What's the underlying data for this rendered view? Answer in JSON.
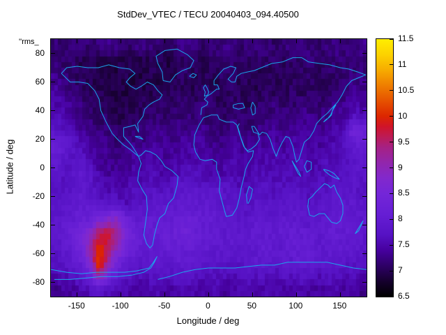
{
  "corner_label": "''rms_",
  "colors": {
    "background": "#ffffff",
    "axis": "#000000",
    "coastline": "#1aa7ec",
    "palette": [
      {
        "t": 0.0,
        "c": "#000000"
      },
      {
        "t": 0.06,
        "c": "#16002e"
      },
      {
        "t": 0.12,
        "c": "#2e0066"
      },
      {
        "t": 0.18,
        "c": "#46009e"
      },
      {
        "t": 0.24,
        "c": "#5612c4"
      },
      {
        "t": 0.32,
        "c": "#661ed4"
      },
      {
        "t": 0.4,
        "c": "#7426d8"
      },
      {
        "t": 0.46,
        "c": "#8228cc"
      },
      {
        "t": 0.52,
        "c": "#9226ac"
      },
      {
        "t": 0.58,
        "c": "#a62184"
      },
      {
        "t": 0.62,
        "c": "#bc1b56"
      },
      {
        "t": 0.66,
        "c": "#d0142a"
      },
      {
        "t": 0.7,
        "c": "#dc2600"
      },
      {
        "t": 0.76,
        "c": "#e65200"
      },
      {
        "t": 0.82,
        "c": "#ef7e00"
      },
      {
        "t": 0.88,
        "c": "#f7ac00"
      },
      {
        "t": 0.94,
        "c": "#fcd200"
      },
      {
        "t": 1.0,
        "c": "#ffee00"
      }
    ]
  },
  "chart_data": {
    "type": "heatmap",
    "title": "StdDev_VTEC / TECU 20040403_094.40500",
    "xlabel": "Longitude / deg",
    "ylabel": "Latitude / deg",
    "zlabel": "TECU",
    "grid": false,
    "legend_position": "right-colorbar",
    "axes": {
      "x": {
        "min": -180,
        "max": 180,
        "ticks": [
          -150,
          -100,
          -50,
          0,
          50,
          100,
          150
        ]
      },
      "y": {
        "min": -90,
        "max": 90,
        "ticks": [
          80,
          60,
          40,
          20,
          0,
          -20,
          -40,
          -60,
          -80
        ]
      }
    },
    "colorbar": {
      "min": 6.5,
      "max": 11.5,
      "tick_values": [
        6.5,
        7,
        7.5,
        8,
        8.5,
        9,
        9.5,
        10,
        10.5,
        11,
        11.5
      ],
      "tick_labels": [
        "6.5",
        "7",
        "7.5",
        "8",
        "8.5",
        "9",
        "9.5",
        "10",
        "10.5",
        "11",
        "11.5"
      ]
    },
    "zlim": [
      6.5,
      11.5
    ],
    "grid_deg": 10,
    "row_order": "north-to-south",
    "values": [
      [
        7.2,
        7.1,
        7.2,
        7.3,
        7.1,
        7.2,
        7.3,
        7.2,
        7.1,
        7.2,
        7.3,
        7.2,
        7.1,
        7.1,
        7.2,
        7.3,
        7.2,
        7.1,
        7.2,
        7.2,
        7.3,
        7.1,
        7.2,
        7.3,
        7.2,
        7.1,
        7.2,
        7.2,
        7.3,
        7.2,
        7.1,
        7.2,
        7.3,
        7.2,
        7.2,
        7.3
      ],
      [
        7.2,
        7.1,
        7.1,
        7.0,
        7.0,
        7.0,
        6.9,
        7.0,
        6.9,
        7.0,
        6.9,
        7.0,
        7.0,
        6.9,
        7.0,
        7.1,
        7.1,
        7.0,
        7.1,
        7.1,
        7.2,
        7.1,
        7.1,
        7.0,
        7.1,
        7.1,
        7.0,
        7.1,
        7.1,
        7.2,
        7.1,
        7.1,
        7.2,
        7.2,
        7.1,
        7.2
      ],
      [
        7.3,
        7.2,
        7.1,
        7.0,
        7.0,
        6.9,
        6.9,
        6.9,
        7.0,
        6.9,
        6.9,
        7.0,
        6.9,
        7.0,
        7.0,
        7.1,
        7.0,
        7.0,
        7.0,
        7.1,
        7.1,
        7.0,
        7.1,
        7.0,
        7.0,
        7.1,
        7.0,
        7.0,
        7.1,
        7.1,
        7.0,
        7.1,
        7.1,
        7.2,
        7.2,
        7.2
      ],
      [
        7.4,
        7.3,
        7.2,
        7.1,
        7.0,
        7.0,
        6.9,
        6.9,
        6.9,
        6.9,
        7.0,
        6.9,
        7.0,
        7.0,
        7.1,
        7.0,
        7.0,
        7.1,
        7.0,
        7.0,
        7.1,
        7.0,
        7.0,
        7.0,
        7.1,
        7.0,
        7.0,
        7.1,
        7.0,
        7.1,
        7.1,
        7.1,
        7.2,
        7.2,
        7.3,
        7.3
      ],
      [
        7.5,
        7.4,
        7.3,
        7.2,
        7.1,
        7.0,
        7.0,
        6.9,
        7.0,
        7.0,
        7.0,
        7.1,
        7.1,
        7.0,
        7.1,
        7.1,
        7.1,
        7.2,
        7.1,
        7.0,
        7.1,
        7.1,
        7.0,
        7.1,
        7.1,
        7.2,
        7.1,
        7.1,
        7.2,
        7.2,
        7.1,
        7.2,
        7.3,
        7.3,
        7.4,
        7.4
      ],
      [
        7.6,
        7.5,
        7.4,
        7.3,
        7.2,
        7.1,
        7.1,
        7.0,
        7.0,
        7.1,
        7.1,
        7.2,
        7.2,
        7.1,
        7.2,
        7.2,
        7.2,
        7.2,
        7.1,
        7.1,
        7.2,
        7.2,
        7.1,
        7.2,
        7.2,
        7.2,
        7.2,
        7.3,
        7.3,
        7.3,
        7.2,
        7.3,
        7.4,
        7.4,
        7.8,
        7.6
      ],
      [
        7.8,
        7.7,
        7.6,
        7.4,
        7.3,
        7.2,
        7.2,
        7.1,
        7.1,
        7.2,
        7.2,
        7.3,
        7.3,
        7.2,
        7.3,
        7.3,
        7.4,
        7.3,
        7.2,
        7.2,
        7.3,
        7.3,
        7.2,
        7.3,
        7.3,
        7.4,
        7.3,
        7.4,
        7.4,
        7.4,
        7.3,
        7.4,
        7.5,
        7.6,
        8.5,
        8.2
      ],
      [
        8.1,
        8.0,
        7.8,
        7.6,
        7.4,
        7.3,
        7.3,
        7.2,
        7.2,
        7.3,
        7.3,
        7.4,
        7.4,
        7.3,
        7.4,
        7.4,
        7.5,
        7.4,
        7.3,
        7.3,
        7.4,
        7.4,
        7.3,
        7.4,
        7.4,
        7.5,
        7.4,
        7.5,
        7.5,
        7.5,
        7.4,
        7.5,
        7.6,
        7.7,
        7.9,
        8.0
      ],
      [
        8.0,
        7.8,
        7.7,
        7.8,
        7.6,
        7.4,
        7.3,
        7.3,
        7.3,
        7.4,
        7.4,
        7.5,
        7.4,
        7.4,
        7.5,
        7.5,
        7.5,
        7.5,
        7.4,
        7.4,
        7.5,
        7.5,
        7.4,
        7.5,
        7.5,
        7.5,
        7.5,
        7.6,
        7.6,
        7.5,
        7.5,
        7.6,
        7.6,
        7.7,
        7.8,
        7.9
      ],
      [
        7.8,
        7.7,
        7.8,
        8.0,
        7.8,
        7.5,
        7.4,
        7.4,
        7.4,
        7.5,
        7.5,
        7.6,
        7.5,
        7.5,
        7.6,
        7.6,
        7.6,
        7.6,
        7.5,
        7.5,
        7.6,
        7.5,
        7.5,
        7.6,
        7.6,
        7.5,
        7.6,
        7.6,
        7.6,
        7.5,
        7.6,
        7.6,
        7.7,
        7.7,
        7.8,
        7.8
      ],
      [
        7.7,
        7.7,
        7.8,
        7.9,
        7.8,
        7.6,
        7.5,
        7.5,
        7.5,
        7.6,
        7.6,
        7.7,
        7.7,
        7.7,
        7.8,
        7.8,
        7.8,
        7.8,
        7.8,
        7.8,
        7.7,
        7.6,
        7.6,
        7.7,
        7.7,
        7.6,
        7.7,
        7.7,
        7.7,
        7.6,
        7.7,
        7.7,
        7.8,
        7.8,
        7.8,
        7.7
      ],
      [
        7.7,
        7.8,
        7.9,
        8.0,
        7.9,
        7.8,
        7.8,
        7.7,
        7.6,
        7.7,
        7.7,
        7.8,
        7.8,
        7.9,
        7.9,
        8.0,
        7.9,
        7.9,
        7.9,
        7.8,
        7.8,
        7.7,
        7.7,
        7.8,
        7.8,
        7.7,
        7.8,
        7.8,
        7.8,
        7.7,
        7.8,
        7.8,
        7.9,
        7.9,
        7.9,
        7.8
      ],
      [
        7.8,
        7.9,
        8.0,
        8.1,
        8.0,
        8.4,
        8.6,
        8.8,
        8.2,
        7.9,
        7.9,
        8.0,
        8.0,
        8.0,
        8.1,
        8.2,
        8.1,
        8.0,
        8.0,
        7.9,
        7.9,
        7.8,
        7.8,
        7.9,
        7.9,
        7.8,
        7.9,
        7.9,
        7.9,
        7.8,
        7.9,
        7.9,
        8.0,
        8.0,
        7.9,
        7.9
      ],
      [
        7.9,
        8.0,
        8.2,
        8.4,
        8.8,
        9.6,
        9.8,
        9.2,
        8.6,
        8.2,
        8.0,
        8.0,
        8.1,
        8.1,
        8.2,
        8.3,
        8.1,
        8.0,
        8.0,
        7.9,
        7.9,
        7.9,
        7.9,
        8.0,
        8.0,
        7.9,
        8.0,
        8.0,
        8.0,
        7.9,
        7.9,
        8.0,
        8.0,
        8.0,
        8.0,
        7.9
      ],
      [
        7.8,
        7.9,
        8.1,
        8.4,
        9.2,
        10.0,
        9.6,
        9.0,
        8.4,
        8.1,
        8.0,
        8.0,
        8.0,
        8.1,
        8.1,
        8.1,
        8.0,
        8.0,
        7.9,
        7.9,
        7.9,
        7.8,
        7.9,
        7.9,
        8.0,
        7.9,
        7.9,
        8.0,
        8.0,
        8.1,
        7.9,
        7.9,
        8.0,
        7.9,
        7.9,
        7.8
      ],
      [
        7.7,
        7.8,
        7.9,
        8.2,
        8.8,
        10.3,
        9.2,
        8.4,
        8.1,
        7.9,
        7.8,
        7.9,
        7.9,
        7.9,
        8.0,
        7.9,
        7.9,
        7.9,
        7.8,
        7.8,
        7.8,
        7.8,
        7.8,
        7.9,
        7.9,
        7.8,
        7.9,
        7.9,
        8.1,
        8.0,
        7.9,
        7.9,
        7.9,
        7.8,
        7.8,
        7.7
      ],
      [
        7.5,
        7.6,
        7.7,
        7.8,
        8.2,
        9.4,
        8.6,
        8.0,
        7.8,
        7.7,
        7.6,
        7.7,
        7.7,
        7.7,
        7.8,
        7.8,
        7.7,
        7.7,
        7.7,
        7.6,
        7.6,
        7.6,
        7.7,
        7.7,
        7.7,
        7.6,
        7.7,
        7.7,
        7.7,
        7.7,
        7.6,
        7.7,
        7.7,
        7.6,
        7.6,
        7.5
      ],
      [
        7.3,
        7.4,
        7.4,
        7.5,
        7.6,
        7.7,
        7.6,
        7.5,
        7.5,
        7.4,
        7.4,
        7.5,
        7.5,
        7.4,
        7.5,
        7.5,
        7.5,
        7.4,
        7.5,
        7.4,
        7.4,
        7.5,
        7.5,
        7.4,
        7.5,
        7.5,
        7.4,
        7.5,
        7.5,
        7.4,
        7.4,
        7.5,
        7.5,
        7.4,
        7.4,
        7.3
      ]
    ]
  }
}
